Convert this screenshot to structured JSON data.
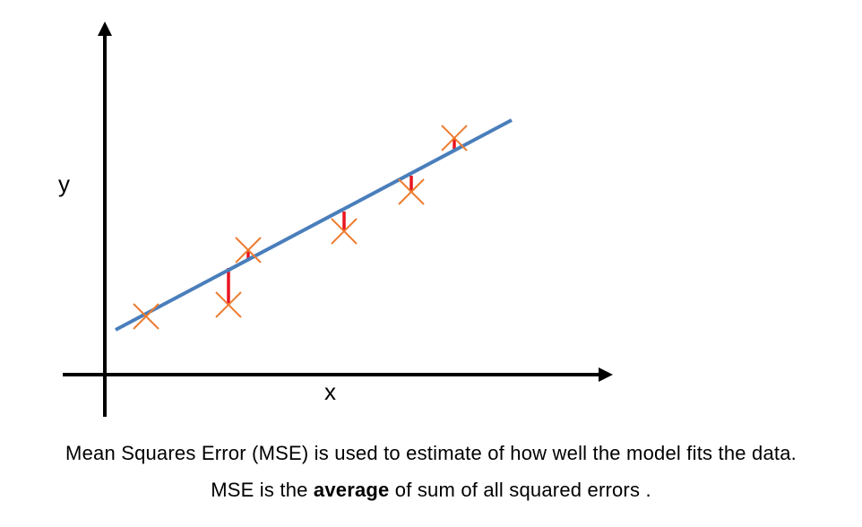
{
  "diagram": {
    "y_label": "y",
    "x_label": "x",
    "colors": {
      "axis": "#000000",
      "fit_line": "#4a7ebb",
      "point_marker": "#ed7d31",
      "error_bar": "#e8141e"
    },
    "icons": {
      "point": "x-cross-icon"
    }
  },
  "caption": {
    "line1": "Mean Squares Error (MSE) is used to estimate of how well the model fits the data.",
    "line2_before": "MSE is the ",
    "line2_bold": "average",
    "line2_after": " of sum of all squared errors ."
  }
}
